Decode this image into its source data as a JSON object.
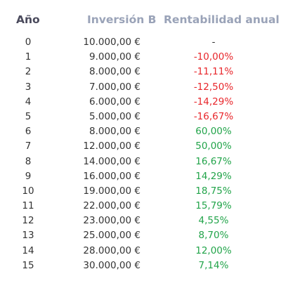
{
  "table": {
    "headers": {
      "year": "Año",
      "investment": "Inversión B",
      "return": "Rentabilidad anual"
    },
    "colors": {
      "negative": "#e8262b",
      "positive": "#22a44a",
      "neutral": "#333333",
      "header_dark": "#4a4a5c",
      "header_light": "#9aa3b8"
    },
    "rows": [
      {
        "year": "0",
        "investment": "10.000,00 €",
        "return": "-",
        "sign": "neu"
      },
      {
        "year": "1",
        "investment": "9.000,00 €",
        "return": "-10,00%",
        "sign": "neg"
      },
      {
        "year": "2",
        "investment": "8.000,00 €",
        "return": "-11,11%",
        "sign": "neg"
      },
      {
        "year": "3",
        "investment": "7.000,00 €",
        "return": "-12,50%",
        "sign": "neg"
      },
      {
        "year": "4",
        "investment": "6.000,00 €",
        "return": "-14,29%",
        "sign": "neg"
      },
      {
        "year": "5",
        "investment": "5.000,00 €",
        "return": "-16,67%",
        "sign": "neg"
      },
      {
        "year": "6",
        "investment": "8.000,00 €",
        "return": "60,00%",
        "sign": "pos"
      },
      {
        "year": "7",
        "investment": "12.000,00 €",
        "return": "50,00%",
        "sign": "pos"
      },
      {
        "year": "8",
        "investment": "14.000,00 €",
        "return": "16,67%",
        "sign": "pos"
      },
      {
        "year": "9",
        "investment": "16.000,00 €",
        "return": "14,29%",
        "sign": "pos"
      },
      {
        "year": "10",
        "investment": "19.000,00 €",
        "return": "18,75%",
        "sign": "pos"
      },
      {
        "year": "11",
        "investment": "22.000,00 €",
        "return": "15,79%",
        "sign": "pos"
      },
      {
        "year": "12",
        "investment": "23.000,00 €",
        "return": "4,55%",
        "sign": "pos"
      },
      {
        "year": "13",
        "investment": "25.000,00 €",
        "return": "8,70%",
        "sign": "pos"
      },
      {
        "year": "14",
        "investment": "28.000,00 €",
        "return": "12,00%",
        "sign": "pos"
      },
      {
        "year": "15",
        "investment": "30.000,00 €",
        "return": "7,14%",
        "sign": "pos"
      }
    ]
  }
}
